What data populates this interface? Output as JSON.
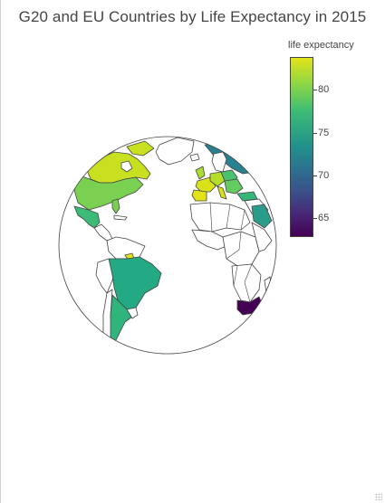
{
  "title": "G20 and EU Countries by Life Expectancy in 2015",
  "colorbar": {
    "title": "life expectancy",
    "ticks": [
      "80",
      "75",
      "70",
      "65"
    ],
    "range": [
      62.7,
      83.7
    ],
    "colorscale": "viridis"
  },
  "colors": {
    "min": "#440154",
    "low": "#3b518b",
    "mid": "#21918c",
    "high": "#8bd646",
    "max": "#e2e418",
    "land_unrated": "#ffffff",
    "border": "#444444"
  },
  "map_data": {
    "projection": "orthographic",
    "countries": [
      {
        "name": "Canada",
        "value": 82.2
      },
      {
        "name": "United States",
        "value": 79.3
      },
      {
        "name": "Mexico",
        "value": 76.7
      },
      {
        "name": "Brazil",
        "value": 75.0
      },
      {
        "name": "Argentina",
        "value": 76.3
      },
      {
        "name": "Russia",
        "value": 70.5
      },
      {
        "name": "France",
        "value": 82.4
      },
      {
        "name": "United Kingdom",
        "value": 81.2
      },
      {
        "name": "Germany",
        "value": 81.0
      },
      {
        "name": "Italy",
        "value": 82.7
      },
      {
        "name": "Spain",
        "value": 82.8
      },
      {
        "name": "Portugal",
        "value": 81.3
      },
      {
        "name": "Poland",
        "value": 77.5
      },
      {
        "name": "Turkey",
        "value": 75.8
      },
      {
        "name": "Saudi Arabia",
        "value": 74.5
      },
      {
        "name": "South Africa",
        "value": 62.9
      }
    ]
  }
}
